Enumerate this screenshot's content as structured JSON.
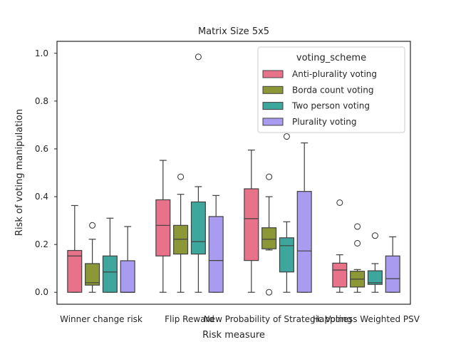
{
  "chart_data": {
    "type": "box",
    "title": "Matrix Size 5x5",
    "xlabel": "Risk measure",
    "ylabel": "Risk of voting manipulation",
    "ylim": [
      -0.05,
      1.05
    ],
    "yticks": [
      "0.0",
      "0.2",
      "0.4",
      "0.6",
      "0.8",
      "1.0"
    ],
    "grid": false,
    "legend_position": "top-right",
    "legend_title": "voting_scheme",
    "categories": [
      "Winner change risk",
      "Flip Reward",
      "New Probability of Strategic Voting",
      "Happiness Weighted PSV"
    ],
    "series": [
      {
        "name": "Anti-plurality voting",
        "color": "#e8728a",
        "boxes": [
          {
            "whislo": 0.0,
            "q1": 0.0,
            "med": 0.152,
            "q3": 0.175,
            "whishi": 0.363,
            "fliers": []
          },
          {
            "whislo": 0.0,
            "q1": 0.152,
            "med": 0.28,
            "q3": 0.387,
            "whishi": 0.552,
            "fliers": []
          },
          {
            "whislo": 0.0,
            "q1": 0.133,
            "med": 0.308,
            "q3": 0.433,
            "whishi": 0.595,
            "fliers": []
          },
          {
            "whislo": 0.0,
            "q1": 0.022,
            "med": 0.093,
            "q3": 0.122,
            "whishi": 0.157,
            "fliers": [
              0.375
            ]
          }
        ]
      },
      {
        "name": "Borda count voting",
        "color": "#8c9838",
        "boxes": [
          {
            "whislo": 0.0,
            "q1": 0.03,
            "med": 0.04,
            "q3": 0.12,
            "whishi": 0.222,
            "fliers": [
              0.28
            ]
          },
          {
            "whislo": 0.0,
            "q1": 0.16,
            "med": 0.222,
            "q3": 0.28,
            "whishi": 0.41,
            "fliers": [
              0.483
            ]
          },
          {
            "whislo": 0.177,
            "q1": 0.182,
            "med": 0.222,
            "q3": 0.27,
            "whishi": 0.4,
            "fliers": [
              0.483,
              0.0
            ]
          },
          {
            "whislo": 0.0,
            "q1": 0.022,
            "med": 0.055,
            "q3": 0.088,
            "whishi": 0.095,
            "fliers": [
              0.205,
              0.275
            ]
          }
        ]
      },
      {
        "name": "Two person voting",
        "color": "#3ea79d",
        "boxes": [
          {
            "whislo": 0.0,
            "q1": 0.0,
            "med": 0.085,
            "q3": 0.152,
            "whishi": 0.31,
            "fliers": []
          },
          {
            "whislo": 0.0,
            "q1": 0.16,
            "med": 0.212,
            "q3": 0.378,
            "whishi": 0.442,
            "fliers": [
              0.985
            ]
          },
          {
            "whislo": 0.0,
            "q1": 0.085,
            "med": 0.195,
            "q3": 0.228,
            "whishi": 0.295,
            "fliers": [
              0.652
            ]
          },
          {
            "whislo": 0.0,
            "q1": 0.033,
            "med": 0.04,
            "q3": 0.09,
            "whishi": 0.12,
            "fliers": [
              0.237
            ]
          }
        ]
      },
      {
        "name": "Plurality voting",
        "color": "#a99bef",
        "boxes": [
          {
            "whislo": 0.0,
            "q1": 0.0,
            "med": 0.0,
            "q3": 0.132,
            "whishi": 0.275,
            "fliers": []
          },
          {
            "whislo": 0.0,
            "q1": 0.0,
            "med": 0.133,
            "q3": 0.317,
            "whishi": 0.405,
            "fliers": []
          },
          {
            "whislo": 0.0,
            "q1": 0.0,
            "med": 0.173,
            "q3": 0.422,
            "whishi": 0.625,
            "fliers": []
          },
          {
            "whislo": 0.0,
            "q1": 0.0,
            "med": 0.057,
            "q3": 0.152,
            "whishi": 0.232,
            "fliers": []
          }
        ]
      }
    ]
  }
}
